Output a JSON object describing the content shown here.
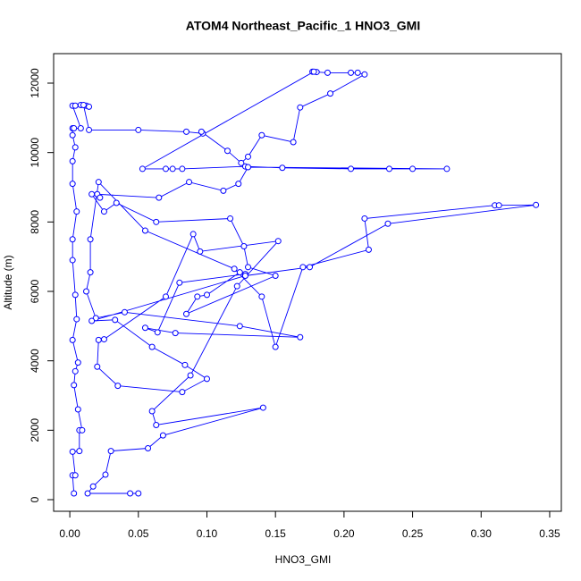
{
  "chart_data": {
    "type": "line",
    "title": "ATOM4 Northeast_Pacific_1 HNO3_GMI",
    "x_label": "HNO3_GMI",
    "y_label": "Altitude (m)",
    "color": "#0000ff",
    "markers": true,
    "xlim": [
      -0.0118,
      0.3585
    ],
    "ylim": [
      -335,
      12850
    ],
    "xticks": [
      {
        "value": 0,
        "label": "0.00"
      },
      0.05,
      {
        "value": 0.1,
        "label": "0.10"
      },
      0.15,
      {
        "value": 0.2,
        "label": "0.20"
      },
      0.25,
      {
        "value": 0.3,
        "label": "0.30"
      },
      0.35
    ],
    "yticks": [
      0,
      2000,
      4000,
      6000,
      8000,
      10000,
      12000
    ],
    "x": [
      0.003,
      0.002,
      0.004,
      0.002,
      0.007,
      0.007,
      0.009,
      0.006,
      0.003,
      0.004,
      0.006,
      0.002,
      0.005,
      0.004,
      0.002,
      0.002,
      0.005,
      0.002,
      0.002,
      0.004,
      0.002,
      0.002,
      0.003,
      0.008,
      0.002,
      0.004,
      0.008,
      0.012,
      0.014,
      0.01,
      0.014,
      0.05,
      0.085,
      0.097,
      0.096,
      0.115,
      0.125,
      0.13,
      0.14,
      0.163,
      0.168,
      0.19,
      0.215,
      0.21,
      0.205,
      0.188,
      0.18,
      0.177,
      0.178,
      0.053,
      0.07,
      0.075,
      0.082,
      0.128,
      0.155,
      0.205,
      0.233,
      0.25,
      0.275,
      0.13,
      0.123,
      0.112,
      0.087,
      0.065,
      0.02,
      0.022,
      0.016,
      0.025,
      0.034,
      0.063,
      0.117,
      0.127,
      0.13,
      0.15,
      0.085,
      0.093,
      0.1,
      0.124,
      0.128,
      0.08,
      0.064,
      0.055,
      0.077,
      0.168,
      0.124,
      0.04,
      0.019,
      0.012,
      0.015,
      0.015,
      0.021,
      0.055,
      0.12,
      0.14,
      0.15,
      0.17,
      0.218,
      0.215,
      0.31,
      0.313,
      0.34,
      0.232,
      0.175,
      0.128,
      0.016,
      0.033,
      0.06,
      0.084,
      0.1,
      0.082,
      0.035,
      0.02,
      0.021,
      0.025,
      0.07,
      0.09,
      0.095,
      0.152,
      0.122,
      0.088,
      0.06,
      0.063,
      0.141,
      0.068,
      0.057,
      0.03,
      0.026,
      0.017,
      0.013,
      0.044,
      0.05
    ],
    "values": [
      180,
      700,
      700,
      1380,
      1400,
      2000,
      2000,
      2600,
      3300,
      3700,
      3950,
      4600,
      5200,
      5900,
      6900,
      7500,
      8300,
      9100,
      9750,
      10150,
      10500,
      10700,
      10700,
      10700,
      11350,
      11350,
      11370,
      11350,
      11320,
      11370,
      10650,
      10650,
      10600,
      10550,
      10600,
      10050,
      9700,
      9880,
      10500,
      10300,
      11300,
      11700,
      12250,
      12300,
      12300,
      12300,
      12320,
      12330,
      12330,
      9530,
      9530,
      9530,
      9530,
      9600,
      9560,
      9530,
      9530,
      9530,
      9530,
      9580,
      9100,
      8900,
      9150,
      8700,
      8800,
      8700,
      8800,
      8300,
      8550,
      8000,
      8100,
      7300,
      6700,
      6450,
      5350,
      5850,
      5900,
      6550,
      6500,
      6250,
      4820,
      4950,
      4800,
      4680,
      5000,
      5400,
      5230,
      6000,
      6550,
      7500,
      9150,
      7750,
      6650,
      5850,
      4400,
      6700,
      7200,
      8100,
      8480,
      8480,
      8490,
      7950,
      6700,
      6450,
      5150,
      5180,
      4400,
      3880,
      3480,
      3100,
      3280,
      3830,
      4600,
      4620,
      5850,
      7650,
      7150,
      7450,
      6150,
      3580,
      2550,
      2150,
      2650,
      1850,
      1480,
      1400,
      720,
      380,
      180,
      180,
      180
    ]
  }
}
